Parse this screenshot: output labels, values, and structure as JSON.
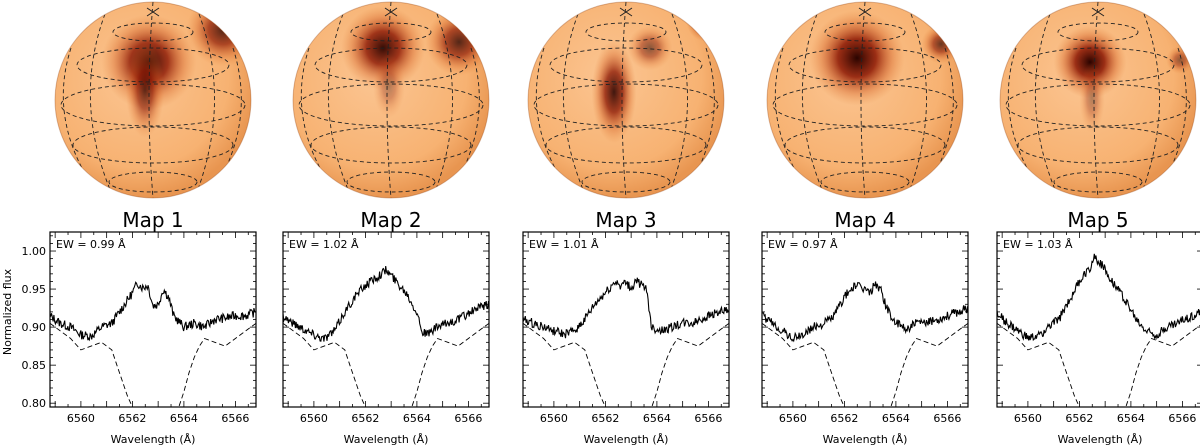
{
  "figure": {
    "ylabel": "Normalized flux",
    "xlabel": "Wavelength (Å)",
    "map_color_light": "#f7b272",
    "map_color_dark": "#2a0400",
    "line_color": "#000000"
  },
  "chart_data": [
    {
      "type": "line",
      "title": "Map 1",
      "annotation": "EW = 0.99 Å",
      "xlabel": "Wavelength (Å)",
      "ylabel": "Normalized flux",
      "xlim": [
        6558.8,
        6566.8
      ],
      "ylim": [
        0.795,
        1.025
      ],
      "xticks": [
        6560,
        6562,
        6564,
        6566
      ],
      "yticks": [
        0.8,
        0.85,
        0.9,
        0.95,
        1.0
      ],
      "observed": {
        "x": [
          6558.8,
          6559.2,
          6559.6,
          6560.0,
          6560.4,
          6560.8,
          6561.2,
          6561.6,
          6562.0,
          6562.2,
          6562.4,
          6562.6,
          6562.8,
          6563.0,
          6563.2,
          6563.4,
          6563.6,
          6564.0,
          6564.4,
          6564.8,
          6565.2,
          6565.6,
          6566.0,
          6566.4,
          6566.8
        ],
        "y": [
          0.915,
          0.905,
          0.9,
          0.89,
          0.888,
          0.9,
          0.905,
          0.925,
          0.945,
          0.958,
          0.952,
          0.955,
          0.928,
          0.93,
          0.95,
          0.94,
          0.915,
          0.9,
          0.905,
          0.9,
          0.91,
          0.912,
          0.915,
          0.915,
          0.92
        ]
      },
      "photospheric": {
        "x": [
          6558.8,
          6559.6,
          6560.0,
          6560.4,
          6560.8,
          6561.2,
          6561.4,
          6561.6,
          6561.8,
          6562.0,
          6563.8,
          6564.0,
          6564.2,
          6564.4,
          6564.6,
          6564.8,
          6565.2,
          6565.6,
          6566.0,
          6566.4,
          6566.8
        ],
        "y": [
          0.905,
          0.885,
          0.87,
          0.875,
          0.88,
          0.87,
          0.85,
          0.83,
          0.81,
          0.795,
          0.795,
          0.815,
          0.84,
          0.86,
          0.875,
          0.885,
          0.88,
          0.875,
          0.885,
          0.895,
          0.905
        ]
      }
    },
    {
      "type": "line",
      "title": "Map 2",
      "annotation": "EW = 1.02 Å",
      "xlabel": "Wavelength (Å)",
      "ylabel": "Normalized flux",
      "xlim": [
        6558.8,
        6566.8
      ],
      "ylim": [
        0.795,
        1.025
      ],
      "xticks": [
        6560,
        6562,
        6564,
        6566
      ],
      "yticks": [
        0.8,
        0.85,
        0.9,
        0.95,
        1.0
      ],
      "observed": {
        "x": [
          6558.8,
          6559.2,
          6559.6,
          6560.0,
          6560.4,
          6560.8,
          6561.2,
          6561.6,
          6562.0,
          6562.4,
          6562.8,
          6563.0,
          6563.2,
          6563.6,
          6564.0,
          6564.2,
          6564.4,
          6564.8,
          6565.2,
          6565.6,
          6566.0,
          6566.4,
          6566.8
        ],
        "y": [
          0.915,
          0.905,
          0.898,
          0.89,
          0.885,
          0.895,
          0.92,
          0.94,
          0.955,
          0.965,
          0.975,
          0.968,
          0.96,
          0.945,
          0.92,
          0.895,
          0.89,
          0.9,
          0.905,
          0.91,
          0.918,
          0.925,
          0.93
        ]
      },
      "photospheric": {
        "x": [
          6558.8,
          6559.6,
          6560.0,
          6560.4,
          6560.8,
          6561.2,
          6561.4,
          6561.6,
          6561.8,
          6562.0,
          6563.8,
          6564.0,
          6564.2,
          6564.4,
          6564.6,
          6564.8,
          6565.2,
          6565.6,
          6566.0,
          6566.4,
          6566.8
        ],
        "y": [
          0.905,
          0.885,
          0.87,
          0.875,
          0.88,
          0.87,
          0.85,
          0.83,
          0.81,
          0.795,
          0.795,
          0.815,
          0.84,
          0.86,
          0.875,
          0.885,
          0.88,
          0.875,
          0.885,
          0.895,
          0.905
        ]
      }
    },
    {
      "type": "line",
      "title": "Map 3",
      "annotation": "EW = 1.01 Å",
      "xlabel": "Wavelength (Å)",
      "ylabel": "Normalized flux",
      "xlim": [
        6558.8,
        6566.8
      ],
      "ylim": [
        0.795,
        1.025
      ],
      "xticks": [
        6560,
        6562,
        6564,
        6566
      ],
      "yticks": [
        0.8,
        0.85,
        0.9,
        0.95,
        1.0
      ],
      "observed": {
        "x": [
          6558.8,
          6559.2,
          6559.6,
          6560.0,
          6560.4,
          6560.8,
          6561.2,
          6561.6,
          6562.0,
          6562.4,
          6562.6,
          6562.8,
          6563.0,
          6563.2,
          6563.4,
          6563.6,
          6563.8,
          6564.2,
          6564.6,
          6565.0,
          6565.4,
          6565.8,
          6566.2,
          6566.8
        ],
        "y": [
          0.91,
          0.905,
          0.9,
          0.895,
          0.89,
          0.895,
          0.91,
          0.93,
          0.945,
          0.96,
          0.955,
          0.958,
          0.95,
          0.962,
          0.955,
          0.948,
          0.9,
          0.895,
          0.9,
          0.905,
          0.905,
          0.912,
          0.918,
          0.922
        ]
      },
      "photospheric": {
        "x": [
          6558.8,
          6559.6,
          6560.0,
          6560.4,
          6560.8,
          6561.2,
          6561.4,
          6561.6,
          6561.8,
          6562.0,
          6563.8,
          6564.0,
          6564.2,
          6564.4,
          6564.6,
          6564.8,
          6565.2,
          6565.6,
          6566.0,
          6566.4,
          6566.8
        ],
        "y": [
          0.905,
          0.885,
          0.87,
          0.875,
          0.88,
          0.87,
          0.85,
          0.83,
          0.81,
          0.795,
          0.795,
          0.815,
          0.84,
          0.86,
          0.875,
          0.885,
          0.88,
          0.875,
          0.885,
          0.895,
          0.905
        ]
      }
    },
    {
      "type": "line",
      "title": "Map 4",
      "annotation": "EW = 0.97 Å",
      "xlabel": "Wavelength (Å)",
      "ylabel": "Normalized flux",
      "xlim": [
        6558.8,
        6566.8
      ],
      "ylim": [
        0.795,
        1.025
      ],
      "xticks": [
        6560,
        6562,
        6564,
        6566
      ],
      "yticks": [
        0.8,
        0.85,
        0.9,
        0.95,
        1.0
      ],
      "observed": {
        "x": [
          6558.8,
          6559.2,
          6559.6,
          6560.0,
          6560.4,
          6560.8,
          6561.2,
          6561.6,
          6562.0,
          6562.4,
          6562.8,
          6563.0,
          6563.2,
          6563.4,
          6563.6,
          6563.8,
          6564.0,
          6564.4,
          6564.8,
          6565.2,
          6565.6,
          6566.0,
          6566.4,
          6566.8
        ],
        "y": [
          0.915,
          0.905,
          0.895,
          0.885,
          0.89,
          0.9,
          0.905,
          0.915,
          0.94,
          0.955,
          0.95,
          0.945,
          0.958,
          0.95,
          0.93,
          0.915,
          0.905,
          0.898,
          0.905,
          0.905,
          0.91,
          0.915,
          0.92,
          0.925
        ]
      },
      "photospheric": {
        "x": [
          6558.8,
          6559.6,
          6560.0,
          6560.4,
          6560.8,
          6561.2,
          6561.4,
          6561.6,
          6561.8,
          6562.0,
          6563.8,
          6564.0,
          6564.2,
          6564.4,
          6564.6,
          6564.8,
          6565.2,
          6565.6,
          6566.0,
          6566.4,
          6566.8
        ],
        "y": [
          0.905,
          0.885,
          0.87,
          0.875,
          0.88,
          0.87,
          0.85,
          0.83,
          0.81,
          0.795,
          0.795,
          0.815,
          0.84,
          0.86,
          0.875,
          0.885,
          0.88,
          0.875,
          0.885,
          0.895,
          0.905
        ]
      }
    },
    {
      "type": "line",
      "title": "Map 5",
      "annotation": "EW = 1.03 Å",
      "xlabel": "Wavelength (Å)",
      "ylabel": "Normalized flux",
      "xlim": [
        6558.8,
        6566.8
      ],
      "ylim": [
        0.795,
        1.025
      ],
      "xticks": [
        6560,
        6562,
        6564,
        6566
      ],
      "yticks": [
        0.8,
        0.85,
        0.9,
        0.95,
        1.0
      ],
      "observed": {
        "x": [
          6558.8,
          6559.2,
          6559.6,
          6560.0,
          6560.4,
          6560.8,
          6561.2,
          6561.6,
          6562.0,
          6562.4,
          6562.6,
          6562.8,
          6563.0,
          6563.4,
          6563.8,
          6564.2,
          6564.6,
          6565.0,
          6565.4,
          6565.8,
          6566.2,
          6566.8
        ],
        "y": [
          0.918,
          0.905,
          0.895,
          0.885,
          0.888,
          0.9,
          0.91,
          0.935,
          0.96,
          0.978,
          0.993,
          0.985,
          0.975,
          0.955,
          0.935,
          0.91,
          0.895,
          0.89,
          0.9,
          0.905,
          0.912,
          0.92
        ]
      },
      "photospheric": {
        "x": [
          6558.8,
          6559.6,
          6560.0,
          6560.4,
          6560.8,
          6561.2,
          6561.4,
          6561.6,
          6561.8,
          6562.0,
          6563.8,
          6564.0,
          6564.2,
          6564.4,
          6564.6,
          6564.8,
          6565.2,
          6565.6,
          6566.0,
          6566.4,
          6566.8
        ],
        "y": [
          0.905,
          0.885,
          0.87,
          0.875,
          0.88,
          0.87,
          0.85,
          0.83,
          0.81,
          0.795,
          0.795,
          0.815,
          0.84,
          0.86,
          0.875,
          0.885,
          0.88,
          0.875,
          0.885,
          0.895,
          0.905
        ]
      }
    }
  ]
}
